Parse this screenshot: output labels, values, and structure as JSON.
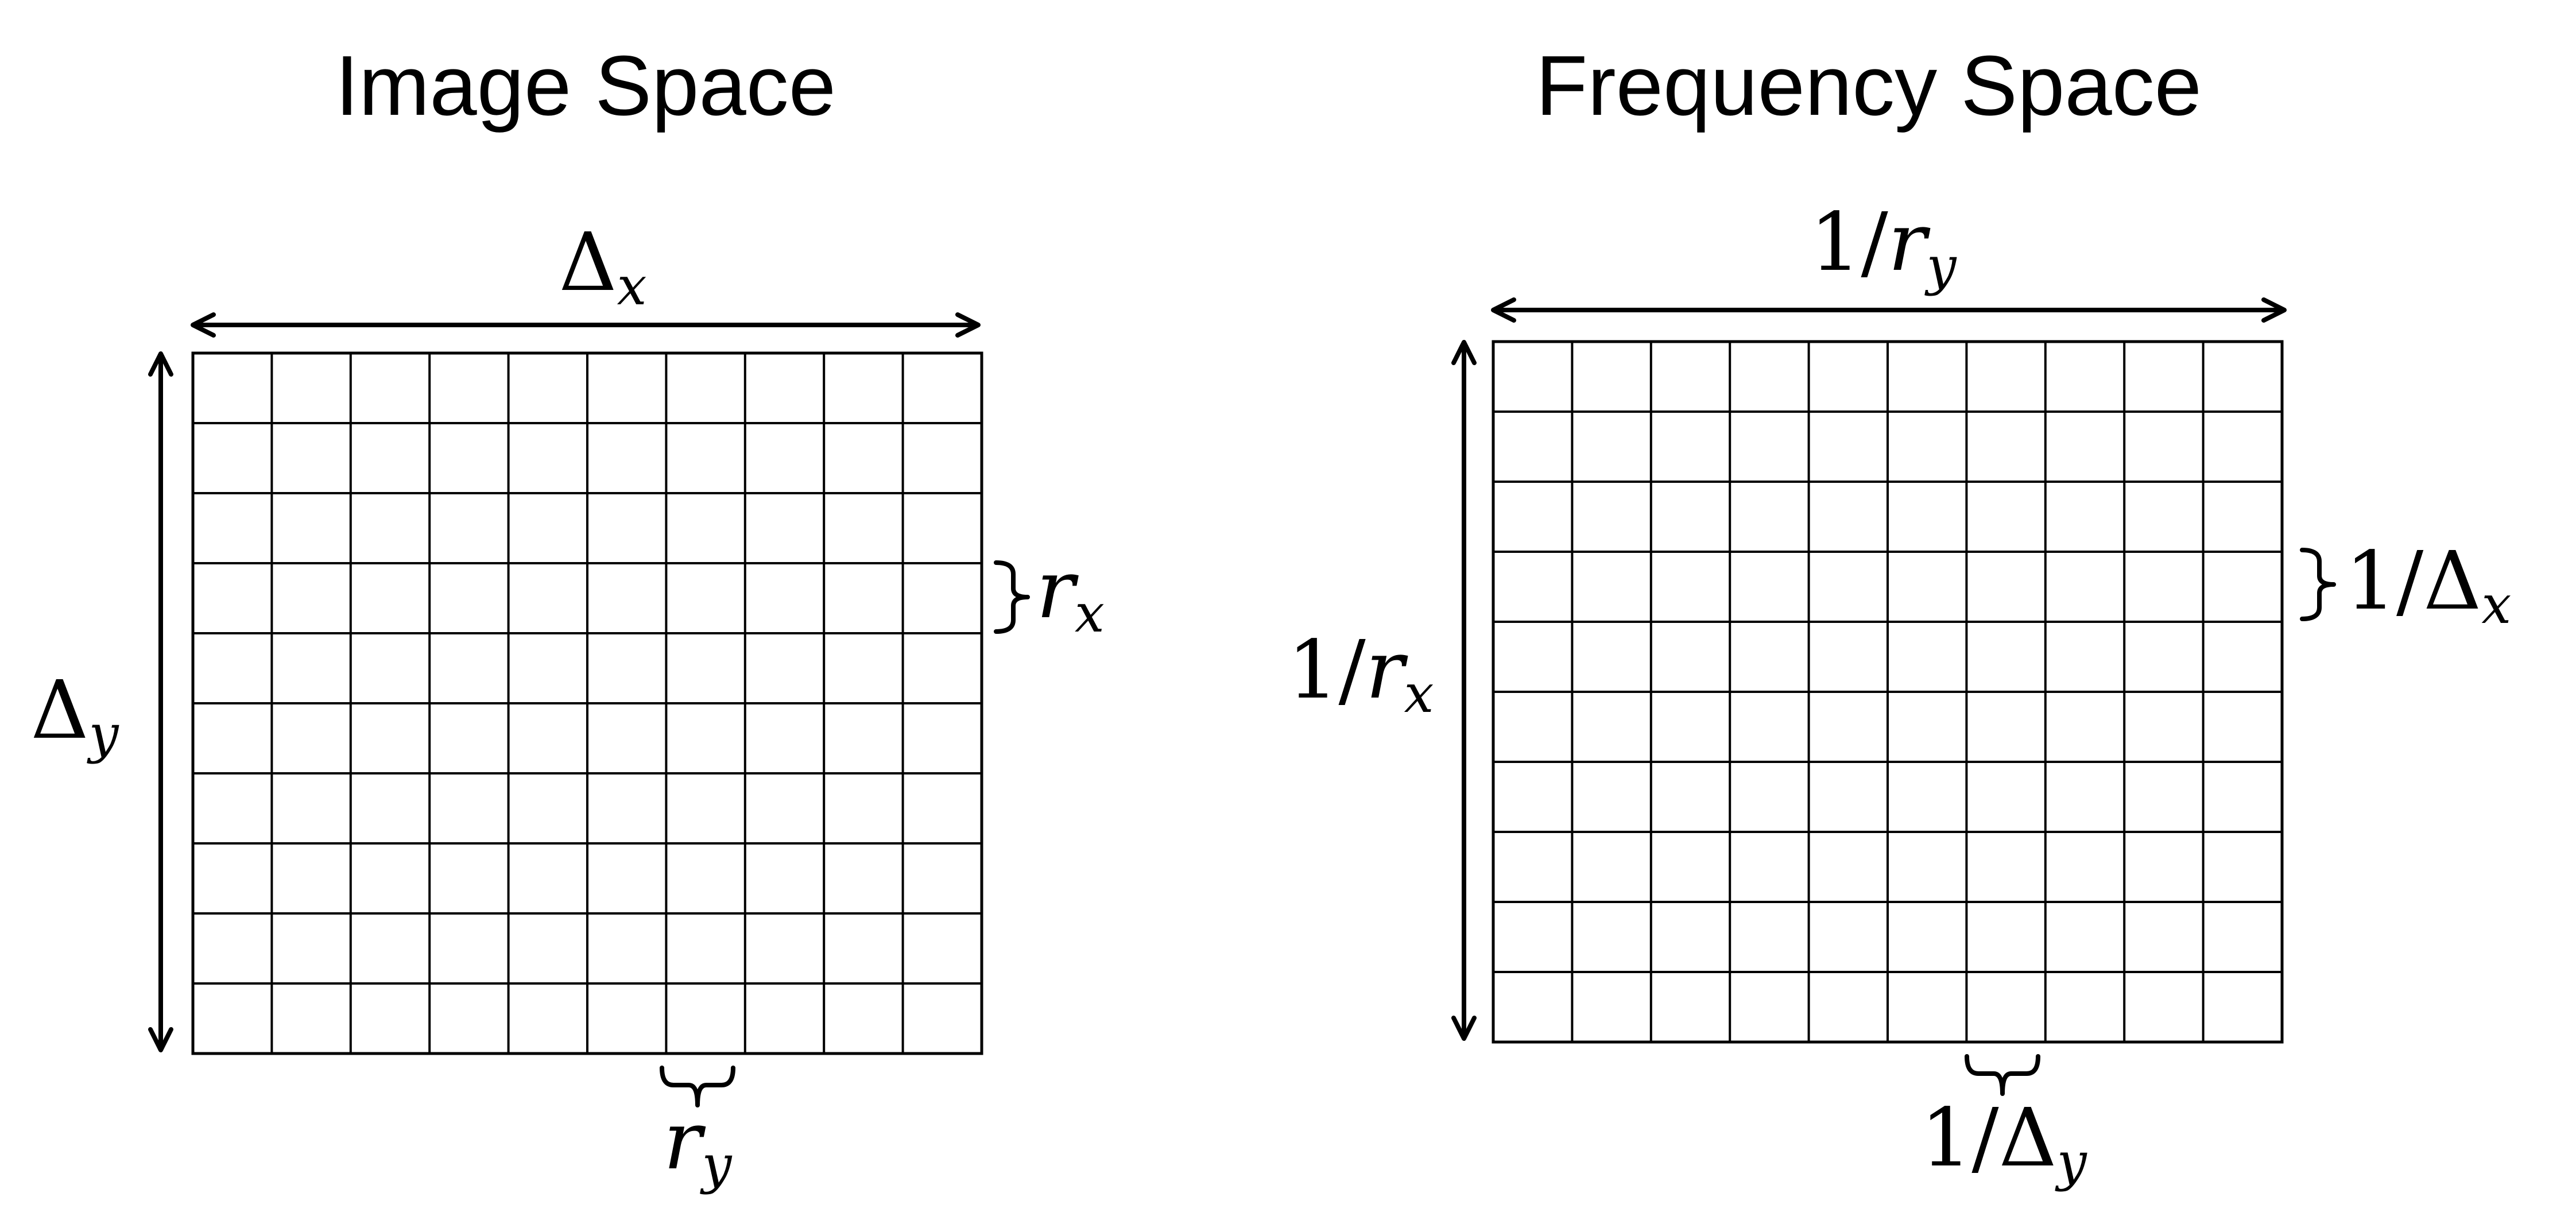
{
  "panels": [
    {
      "title": "Image Space",
      "rows": 10,
      "cols": 10,
      "top_label": {
        "base": "Δ",
        "sub": "x"
      },
      "left_label": {
        "base": "Δ",
        "sub": "y"
      },
      "right_label": {
        "base": "r",
        "sub": "x"
      },
      "bottom_label": {
        "base": "r",
        "sub": "y"
      }
    },
    {
      "title": "Frequency Space",
      "rows": 10,
      "cols": 10,
      "top_label": {
        "prefix": "1/",
        "base": "r",
        "sub": "y"
      },
      "left_label": {
        "prefix": "1/",
        "base": "r",
        "sub": "x"
      },
      "right_label": {
        "prefix": "1/",
        "base": "Δ",
        "sub": "x"
      },
      "bottom_label": {
        "prefix": "1/",
        "base": "Δ",
        "sub": "y"
      }
    }
  ]
}
